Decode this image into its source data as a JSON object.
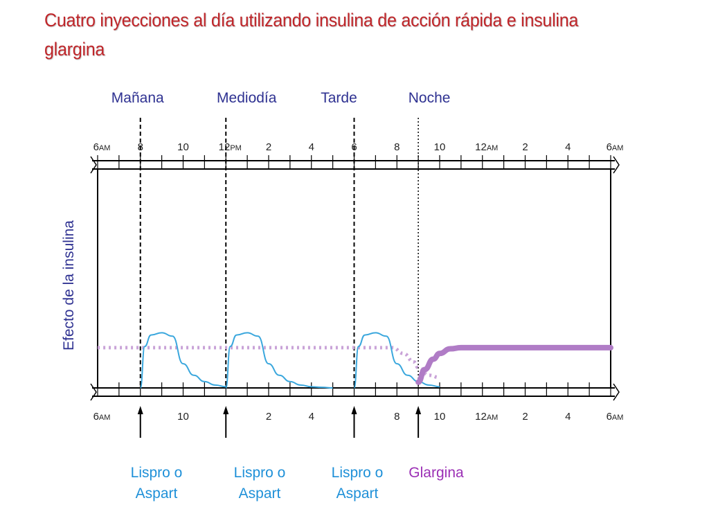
{
  "title": "Cuatro inyecciones al día utilizando insulina de acción rápida e insulina glargina",
  "chart_data": {
    "type": "line",
    "title": "Cuatro inyecciones al día utilizando insulina de acción rápida e insulina glargina",
    "ylabel": "Efecto de la insulina",
    "x_hours_range": [
      6,
      30
    ],
    "top_ticks": [
      "6AM",
      "8",
      "10",
      "12PM",
      "2",
      "4",
      "6",
      "8",
      "10",
      "12AM",
      "2",
      "4",
      "6AM"
    ],
    "bottom_ticks": [
      "6AM",
      "10",
      "2",
      "4",
      "8",
      "10",
      "12AM",
      "2",
      "4",
      "6AM"
    ],
    "periods": [
      {
        "label": "Mañana",
        "hour": 8
      },
      {
        "label": "Mediodía",
        "hour": 12
      },
      {
        "label": "Tarde",
        "hour": 18
      },
      {
        "label": "Noche",
        "hour": 21
      }
    ],
    "injections": [
      {
        "label_line1": "Lispro o",
        "label_line2": "Aspart",
        "hour": 8,
        "color": "#1e90d8"
      },
      {
        "label_line1": "Lispro o",
        "label_line2": "Aspart",
        "hour": 12,
        "color": "#1e90d8"
      },
      {
        "label_line1": "Lispro o",
        "label_line2": "Aspart",
        "hour": 18,
        "color": "#1e90d8"
      },
      {
        "label_line1": "Glargina",
        "label_line2": "",
        "hour": 21,
        "color": "#9b2fb5"
      }
    ],
    "series": [
      {
        "insulin": "rapid",
        "color": "#3aa7dd",
        "curves": [
          {
            "x": [
              8,
              8.2,
              8.5,
              9,
              9.5,
              10,
              10.5,
              11,
              11.5,
              12
            ],
            "y": [
              0,
              0.72,
              0.92,
              0.96,
              0.9,
              0.42,
              0.22,
              0.11,
              0.05,
              0.02
            ]
          },
          {
            "x": [
              12,
              12.2,
              12.5,
              13,
              13.5,
              14,
              14.5,
              15,
              15.5,
              16,
              16.5,
              17
            ],
            "y": [
              0,
              0.72,
              0.92,
              0.96,
              0.9,
              0.42,
              0.22,
              0.11,
              0.05,
              0.02,
              0.01,
              0
            ]
          },
          {
            "x": [
              18,
              18.2,
              18.5,
              19,
              19.5,
              20,
              20.5,
              21,
              21.5,
              22
            ],
            "y": [
              0,
              0.72,
              0.92,
              0.96,
              0.9,
              0.42,
              0.22,
              0.11,
              0.05,
              0.02
            ]
          }
        ]
      },
      {
        "insulin": "glargine",
        "color": "#b07cc6",
        "x": [
          21,
          21.3,
          21.7,
          22,
          22.5,
          23,
          24,
          30
        ],
        "y": [
          0.1,
          0.32,
          0.5,
          0.6,
          0.68,
          0.7,
          0.7,
          0.7
        ]
      },
      {
        "insulin": "glargine (previous day)",
        "color": "#c9a3d8",
        "style": "dotted",
        "x": [
          6,
          19.8,
          20.3,
          20.8,
          21,
          21.5,
          22
        ],
        "y": [
          0.7,
          0.7,
          0.6,
          0.45,
          0.35,
          0.22,
          0.18
        ]
      }
    ]
  }
}
